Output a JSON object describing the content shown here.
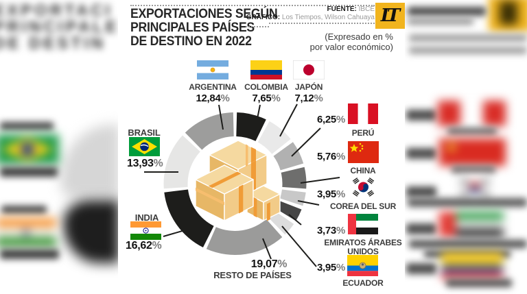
{
  "header": {
    "title_line1": "EXPORTACIONES SEGÚN",
    "title_line2": "PRINCIPALES PAÍSES",
    "title_line3": "DE DESTINO EN 2022",
    "source_label": "FUENTE:",
    "source_value": "IBCE",
    "credit_label": "GRÁFICO:",
    "credit_value": "Los Tiempos, Wilson Cahuaya",
    "logo_text": "LT",
    "note_line1": "(Expresado en %",
    "note_line2": "por valor económico)"
  },
  "percent_sign": "%",
  "colors": {
    "logo_bg": "#f1b41e",
    "leader_line": "#1d1d1b"
  },
  "chart_data": {
    "type": "pie",
    "variant": "donut",
    "title": "Exportaciones según principales países de destino en 2022",
    "unit": "% por valor económico",
    "source": "IBCE",
    "start_angle_deg": 0,
    "direction": "clockwise",
    "slices": [
      {
        "label": "COLOMBIA",
        "value": 7.65,
        "value_label": "7,65",
        "color": "#1d1d1b"
      },
      {
        "label": "JAPÓN",
        "value": 7.12,
        "value_label": "7,12",
        "color": "#e9e9e9"
      },
      {
        "label": "PERÚ",
        "value": 6.25,
        "value_label": "6,25",
        "color": "#b1b1b1"
      },
      {
        "label": "CHINA",
        "value": 5.76,
        "value_label": "5,76",
        "color": "#6e6e6d"
      },
      {
        "label": "COREA DEL SUR",
        "value": 3.95,
        "value_label": "3,95",
        "color": "#c8c8c8"
      },
      {
        "label": "EMIRATOS ÁRABES",
        "label2": "UNIDOS",
        "value": 3.73,
        "value_label": "3,73",
        "color": "#464646"
      },
      {
        "label": "ECUADOR",
        "value": 3.95,
        "value_label": "3,95",
        "color": "#dcdcdc"
      },
      {
        "label": "RESTO DE PAÍSES",
        "value": 19.07,
        "value_label": "19,07",
        "color": "#9b9b9a"
      },
      {
        "label": "INDIA",
        "value": 16.62,
        "value_label": "16,62",
        "color": "#1d1d1b"
      },
      {
        "label": "BRASIL",
        "value": 13.93,
        "value_label": "13,93",
        "color": "#e6e6e5"
      },
      {
        "label": "ARGENTINA",
        "value": 12.84,
        "value_label": "12,84",
        "color": "#9d9d9c"
      }
    ]
  }
}
